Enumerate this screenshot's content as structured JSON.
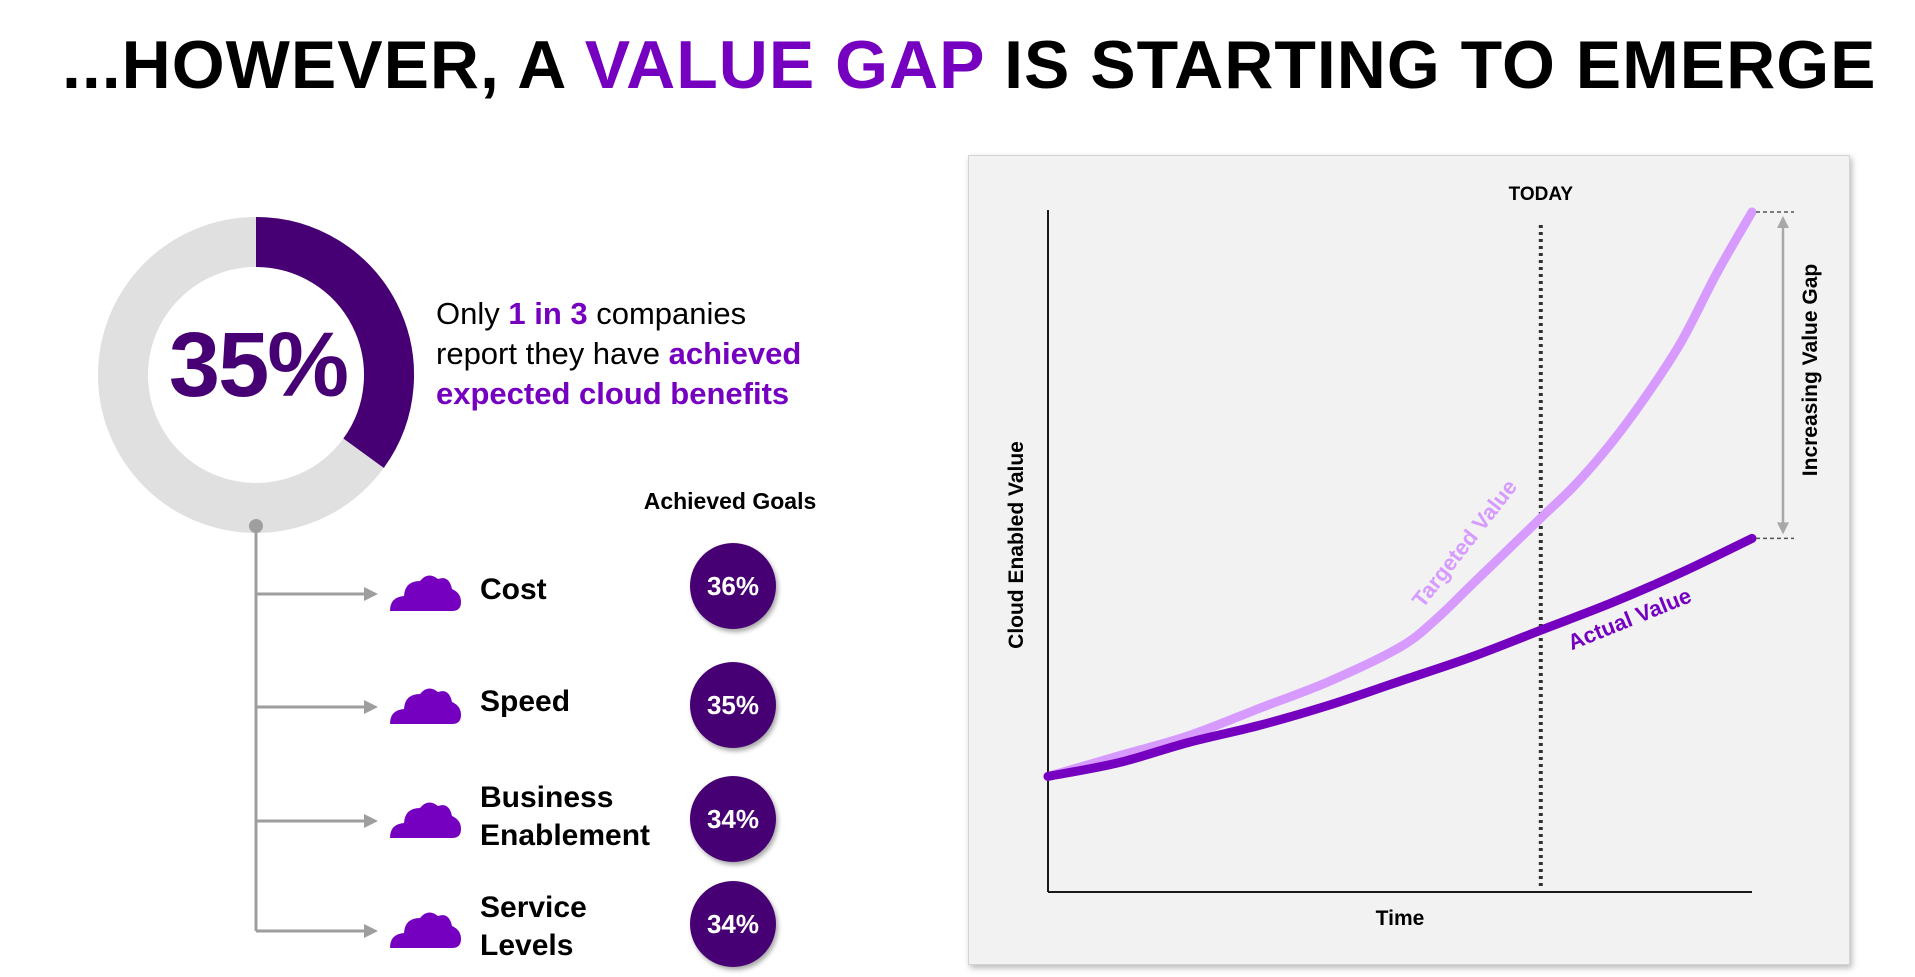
{
  "title": {
    "part1": "...HOWEVER, A ",
    "highlight": "VALUE GAP",
    "part2": " IS STARTING TO EMERGE"
  },
  "stat": {
    "value_label": "35%",
    "value": 35,
    "line1_pre": "Only ",
    "line1_hl": "1 in 3",
    "line1_post": " companies",
    "line2_pre": "report they have ",
    "line2_hl": "achieved",
    "line3_hl": "expected cloud benefits"
  },
  "goals": {
    "header": "Achieved Goals",
    "items": [
      {
        "label_lines": [
          "Cost"
        ],
        "value": "36%"
      },
      {
        "label_lines": [
          "Speed"
        ],
        "value": "35%"
      },
      {
        "label_lines": [
          "Business",
          "Enablement"
        ],
        "value": "34%"
      },
      {
        "label_lines": [
          "Service",
          "Levels"
        ],
        "value": "34%"
      }
    ]
  },
  "icons": {
    "goal_item": "cloud-icon"
  },
  "colors": {
    "dark_purple": "#460073",
    "purple": "#7500c0",
    "light_purple": "#d79aff",
    "donut_track": "#e0e0e0",
    "connector": "#9e9e9e"
  },
  "chart_data": {
    "type": "line",
    "xlabel": "Time",
    "ylabel": "Cloud Enabled Value",
    "marker_label": "TODAY",
    "marker_x": 0.7,
    "gap_label": "Increasing Value Gap",
    "xlim": [
      0,
      1
    ],
    "ylim": [
      0,
      1
    ],
    "series": [
      {
        "name": "Targeted Value",
        "color": "#d79aff",
        "x": [
          0,
          0.1,
          0.2,
          0.3,
          0.4,
          0.5,
          0.55,
          0.6,
          0.65,
          0.7,
          0.75,
          0.8,
          0.85,
          0.9,
          0.95,
          1.0
        ],
        "y": [
          0.17,
          0.2,
          0.23,
          0.27,
          0.31,
          0.36,
          0.4,
          0.45,
          0.5,
          0.55,
          0.6,
          0.66,
          0.73,
          0.81,
          0.91,
          1.0
        ]
      },
      {
        "name": "Actual Value",
        "color": "#7500c0",
        "x": [
          0,
          0.1,
          0.2,
          0.3,
          0.4,
          0.5,
          0.6,
          0.7,
          0.8,
          0.9,
          1.0
        ],
        "y": [
          0.17,
          0.19,
          0.22,
          0.245,
          0.275,
          0.31,
          0.345,
          0.385,
          0.425,
          0.47,
          0.52
        ]
      }
    ]
  }
}
